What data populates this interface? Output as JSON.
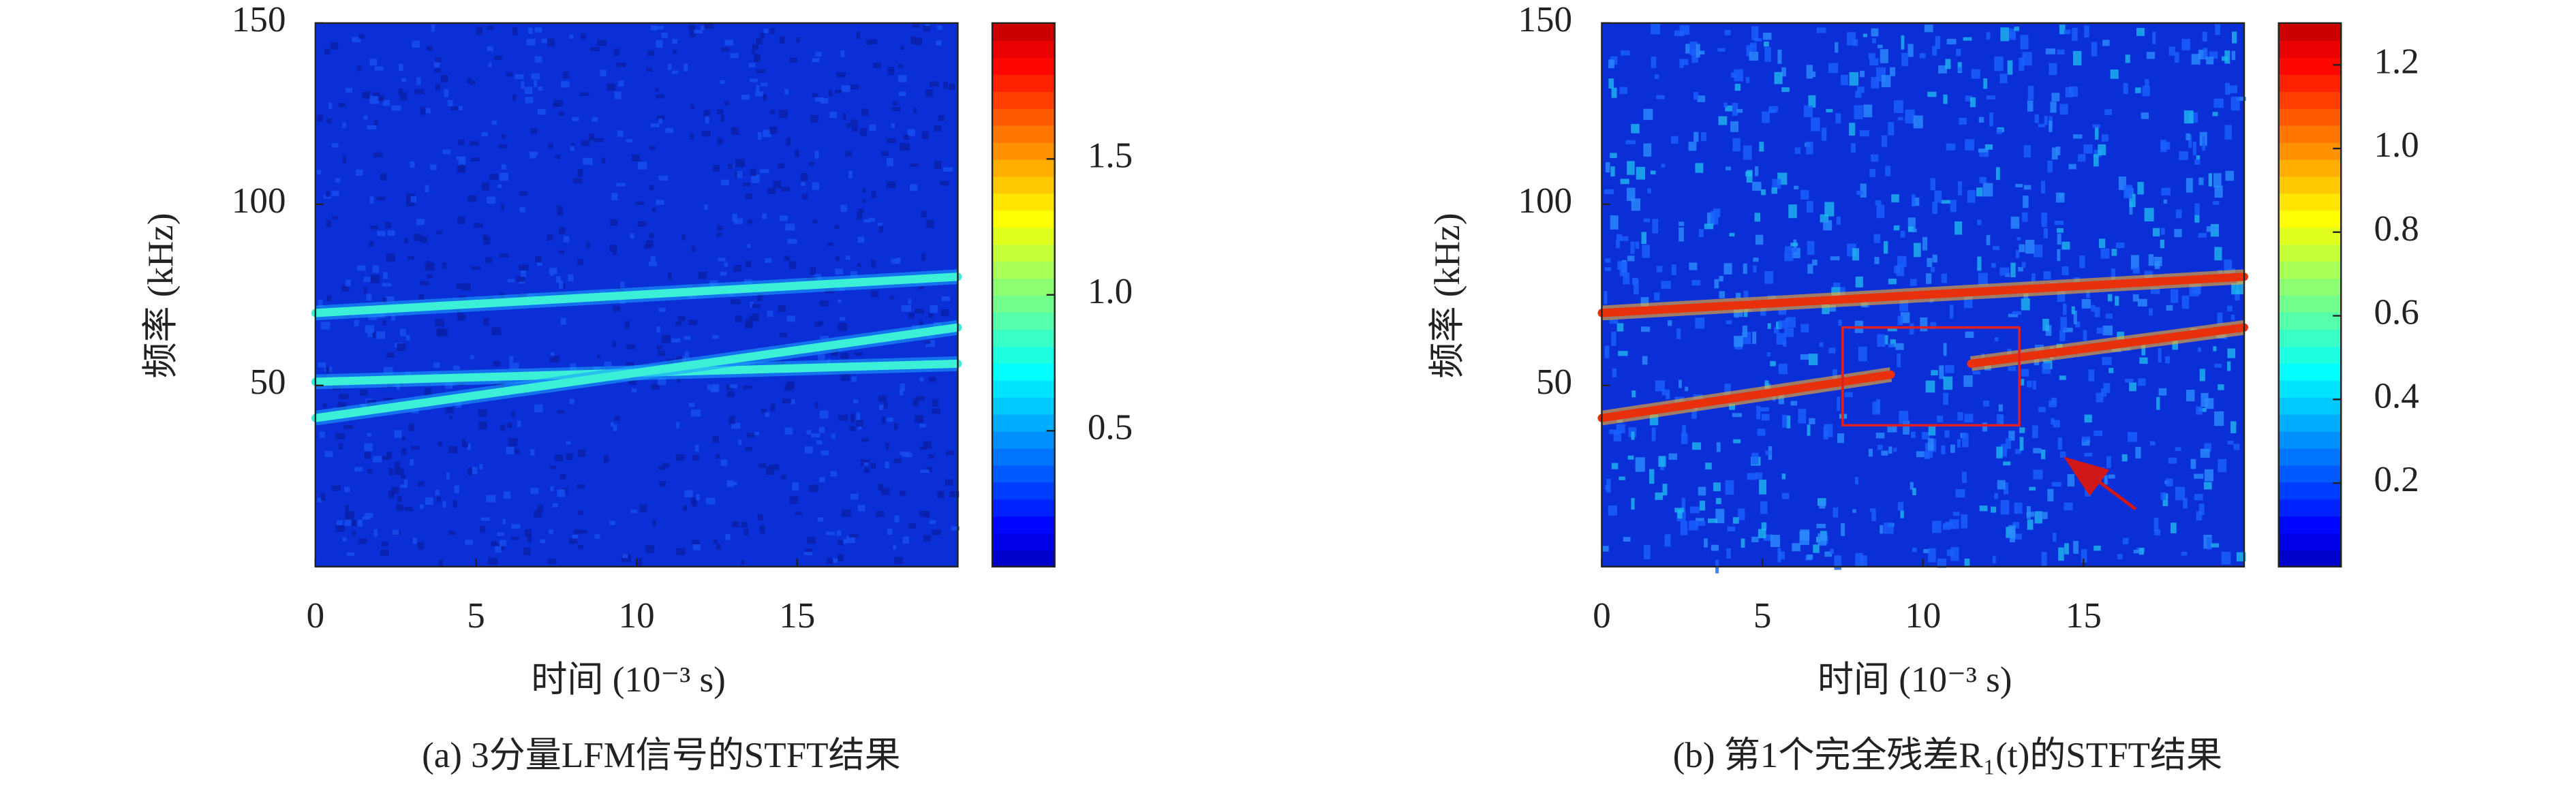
{
  "chart_data": [
    {
      "type": "spectrogram",
      "caption": "(a) 3分量LFM信号的STFT结果",
      "xlabel": "时间 (10⁻³ s)",
      "ylabel": "频率 (kHz)",
      "xlim": [
        0,
        20
      ],
      "ylim": [
        0,
        150
      ],
      "xticks": [
        0,
        5,
        10,
        15
      ],
      "yticks": [
        50,
        100,
        150
      ],
      "clim": [
        0,
        2
      ],
      "cticks": [
        0.5,
        {
          "value": 1,
          "label": "1.0"
        },
        1.5
      ],
      "background": "#0b2fd6",
      "series": [
        {
          "color": "#3cf0d8",
          "x": [
            0,
            20
          ],
          "values": [
            70,
            80
          ]
        },
        {
          "color": "#3cf0d8",
          "x": [
            0,
            20
          ],
          "values": [
            51,
            56
          ]
        },
        {
          "color": "#3cf0d8",
          "x": [
            0,
            20
          ],
          "values": [
            41,
            66
          ]
        }
      ]
    },
    {
      "type": "spectrogram",
      "caption": "(b) 第1个完全残差R₁(t)的STFT结果",
      "xlabel": "时间 (10⁻³ s)",
      "ylabel": "频率 (kHz)",
      "xlim": [
        0,
        20
      ],
      "ylim": [
        0,
        150
      ],
      "xticks": [
        0,
        5,
        10,
        15
      ],
      "yticks": [
        50,
        100,
        150
      ],
      "clim": [
        0,
        1.3
      ],
      "cticks": [
        0.2,
        0.4,
        0.6,
        0.8,
        {
          "value": 1,
          "label": "1.0"
        },
        1.2
      ],
      "background": "#0b2fd6",
      "series": [
        {
          "color": "#e8300c",
          "x": [
            0,
            20
          ],
          "values": [
            70,
            80
          ]
        },
        {
          "color": "#e8300c",
          "x": [
            0,
            9
          ],
          "values": [
            41,
            53
          ]
        },
        {
          "color": "#e8300c",
          "x": [
            11.5,
            20
          ],
          "values": [
            56,
            66
          ]
        }
      ],
      "highlight": {
        "xlim": [
          7.5,
          13
        ],
        "ylim": [
          39,
          66
        ],
        "color": "#e02020"
      }
    }
  ]
}
